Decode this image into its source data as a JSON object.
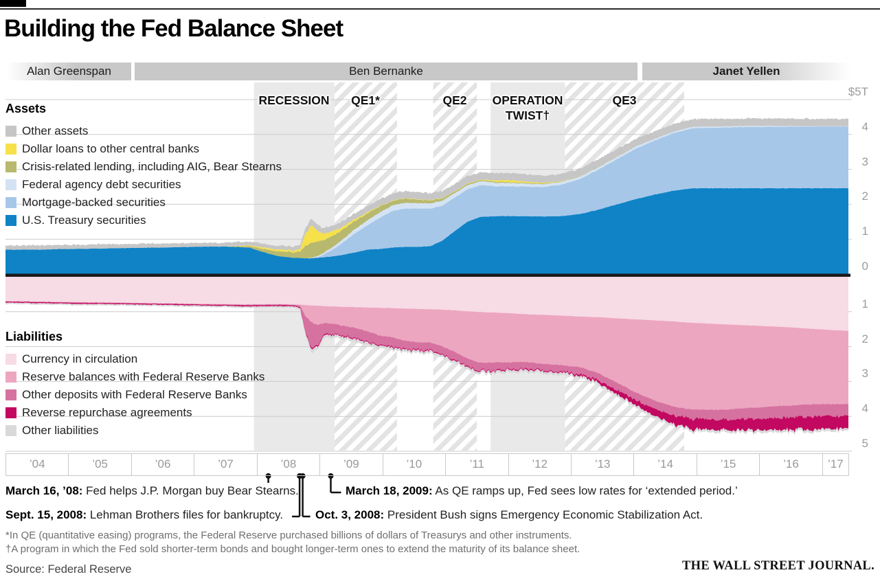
{
  "title": "Building the Fed Balance Sheet",
  "chairmen": [
    {
      "name": "Alan Greenspan"
    },
    {
      "name": "Ben Bernanke"
    },
    {
      "name": "Janet Yellen"
    }
  ],
  "legend_assets": {
    "title": "Assets",
    "items": [
      {
        "label": "Other assets",
        "color": "#c6c6c6"
      },
      {
        "label": "Dollar loans to other central banks",
        "color": "#f6e14b"
      },
      {
        "label": "Crisis-related lending, including AIG, Bear Stearns",
        "color": "#b8b96e"
      },
      {
        "label": "Federal agency debt securities",
        "color": "#d4e3f4"
      },
      {
        "label": "Mortgage-backed securities",
        "color": "#a7c7e8"
      },
      {
        "label": "U.S. Treasury securities",
        "color": "#0f83c6"
      }
    ]
  },
  "legend_liabilities": {
    "title": "Liabilities",
    "items": [
      {
        "label": "Currency in circulation",
        "color": "#f7dbe5"
      },
      {
        "label": "Reserve balances with Federal Reserve Banks",
        "color": "#eda6c0"
      },
      {
        "label": "Other deposits with Federal Reserve Banks",
        "color": "#d672a0"
      },
      {
        "label": "Reverse repurchase agreements",
        "color": "#c20860"
      },
      {
        "label": "Other liabilities",
        "color": "#d9d9d9"
      }
    ]
  },
  "axis": {
    "assets_labels": [
      "$5T",
      "4",
      "3",
      "2",
      "1",
      "0"
    ],
    "liabilities_labels": [
      "1",
      "2",
      "3",
      "4",
      "5"
    ],
    "years": [
      "’04",
      "’05",
      "’06",
      "’07",
      "’08",
      "’09",
      "’10",
      "’11",
      "’12",
      "’13",
      "’14",
      "’15",
      "’16",
      "’17"
    ]
  },
  "annotations": [
    {
      "bold": "March 16, ’08:",
      "text": " Fed helps J.P. Morgan buy Bear Stearns.",
      "marker_year": 2008.21
    },
    {
      "bold": "March 18, 2009:",
      "text": " As QE ramps up, Fed sees low rates for ‘extended period.’",
      "marker_year": 2009.21
    },
    {
      "bold": "Sept. 15, 2008:",
      "text": " Lehman Brothers files for bankruptcy.",
      "marker_year": 2008.71
    },
    {
      "bold": "Oct. 3, 2008:",
      "text": " President Bush signs Emergency Economic Stabilization Act.",
      "marker_year": 2008.76
    }
  ],
  "footnotes": [
    "*In QE (quantitative easing) programs, the Federal Reserve purchased billions of dollars of Treasurys and other instruments.",
    "†A program in which the Fed sold shorter-term bonds and bought longer-term ones to extend the maturity of its balance sheet."
  ],
  "source": "Source: Federal Reserve",
  "brand": "THE WALL STREET JOURNAL.",
  "colors": {
    "band_solid": "#e9e9e9",
    "hatch_stripe": "#e3e3e3",
    "grid": "#cbcbcb",
    "zero_line": "#1a1a1a",
    "connector": "#111111"
  },
  "chart_data": {
    "type": "area",
    "stacked": true,
    "x_range": [
      2004,
      2017.5
    ],
    "y_unit": "trillions of U.S. dollars",
    "assets_ylim": [
      0,
      5
    ],
    "liabilities_ylim": [
      0,
      5
    ],
    "legend_position": "left",
    "grid": true,
    "bands": [
      {
        "label": "RECESSION",
        "start": 2007.98,
        "end": 2009.27,
        "style": "solid"
      },
      {
        "label": "QE1*",
        "start": 2009.27,
        "end": 2010.27,
        "style": "hatch"
      },
      {
        "label": "QE2",
        "start": 2010.85,
        "end": 2011.55,
        "style": "hatch"
      },
      {
        "label": "OPERATION TWIST†",
        "start": 2011.77,
        "end": 2012.96,
        "style": "solid"
      },
      {
        "label": "QE3",
        "start": 2012.96,
        "end": 2014.87,
        "style": "hatch"
      }
    ],
    "assets": {
      "x": [
        2004,
        2004.5,
        2005,
        2005.5,
        2006,
        2006.5,
        2007,
        2007.5,
        2007.9,
        2008.15,
        2008.35,
        2008.6,
        2008.72,
        2008.8,
        2008.9,
        2009,
        2009.1,
        2009.25,
        2009.4,
        2009.6,
        2009.8,
        2010,
        2010.2,
        2010.4,
        2010.6,
        2010.8,
        2011,
        2011.2,
        2011.4,
        2011.6,
        2011.9,
        2012.1,
        2012.3,
        2012.6,
        2012.9,
        2013.2,
        2013.5,
        2013.8,
        2014.1,
        2014.4,
        2014.7,
        2015,
        2015.5,
        2016,
        2016.5,
        2017,
        2017.5
      ],
      "series": [
        {
          "name": "U.S. Treasury securities",
          "color": "#0f83c6",
          "values": [
            0.7,
            0.7,
            0.72,
            0.73,
            0.75,
            0.76,
            0.78,
            0.79,
            0.76,
            0.62,
            0.52,
            0.47,
            0.46,
            0.45,
            0.45,
            0.47,
            0.48,
            0.51,
            0.55,
            0.62,
            0.7,
            0.72,
            0.76,
            0.78,
            0.78,
            0.8,
            0.96,
            1.24,
            1.5,
            1.64,
            1.66,
            1.66,
            1.66,
            1.65,
            1.66,
            1.72,
            1.85,
            2.0,
            2.15,
            2.28,
            2.39,
            2.46,
            2.46,
            2.46,
            2.46,
            2.46,
            2.46
          ]
        },
        {
          "name": "Mortgage-backed securities",
          "color": "#a7c7e8",
          "values": [
            0,
            0,
            0,
            0,
            0,
            0,
            0,
            0,
            0,
            0,
            0,
            0,
            0,
            0,
            0,
            0.02,
            0.08,
            0.2,
            0.35,
            0.55,
            0.7,
            0.9,
            1.05,
            1.1,
            1.1,
            1.08,
            1.0,
            0.96,
            0.92,
            0.91,
            0.85,
            0.85,
            0.85,
            0.84,
            0.9,
            1.0,
            1.15,
            1.3,
            1.45,
            1.55,
            1.65,
            1.72,
            1.74,
            1.76,
            1.76,
            1.77,
            1.77
          ]
        },
        {
          "name": "Federal agency debt securities",
          "color": "#d4e3f4",
          "values": [
            0,
            0,
            0,
            0,
            0,
            0,
            0,
            0,
            0,
            0,
            0,
            0,
            0,
            0,
            0.01,
            0.03,
            0.05,
            0.07,
            0.09,
            0.12,
            0.14,
            0.15,
            0.16,
            0.16,
            0.15,
            0.15,
            0.14,
            0.13,
            0.12,
            0.11,
            0.1,
            0.1,
            0.09,
            0.08,
            0.08,
            0.07,
            0.07,
            0.06,
            0.06,
            0.05,
            0.04,
            0.04,
            0.03,
            0.03,
            0.02,
            0.01,
            0.01
          ]
        },
        {
          "name": "Crisis-related lending, including AIG, Bear Stearns",
          "color": "#b8b96e",
          "values": [
            0,
            0,
            0,
            0,
            0,
            0,
            0,
            0,
            0.04,
            0.1,
            0.14,
            0.16,
            0.19,
            0.35,
            0.43,
            0.42,
            0.36,
            0.32,
            0.28,
            0.24,
            0.2,
            0.18,
            0.13,
            0.12,
            0.1,
            0.09,
            0.06,
            0.04,
            0.04,
            0.03,
            0.03,
            0.02,
            0.02,
            0.02,
            0.01,
            0.01,
            0.01,
            0.01,
            0,
            0,
            0,
            0,
            0,
            0,
            0,
            0,
            0
          ]
        },
        {
          "name": "Dollar loans to other central banks",
          "color": "#f6e14b",
          "values": [
            0,
            0,
            0,
            0,
            0,
            0,
            0,
            0,
            0.02,
            0.04,
            0.05,
            0.05,
            0.07,
            0.35,
            0.49,
            0.3,
            0.18,
            0.12,
            0.08,
            0.05,
            0.03,
            0.01,
            0.01,
            0.01,
            0.01,
            0.01,
            0.01,
            0.01,
            0.01,
            0.01,
            0.04,
            0.06,
            0.04,
            0.02,
            0.01,
            0,
            0,
            0,
            0,
            0,
            0,
            0,
            0,
            0,
            0,
            0,
            0
          ]
        },
        {
          "name": "Other assets",
          "color": "#c6c6c6",
          "values": [
            0.12,
            0.12,
            0.12,
            0.12,
            0.12,
            0.12,
            0.11,
            0.11,
            0.11,
            0.11,
            0.11,
            0.11,
            0.12,
            0.16,
            0.19,
            0.17,
            0.16,
            0.16,
            0.16,
            0.17,
            0.18,
            0.19,
            0.2,
            0.2,
            0.2,
            0.2,
            0.2,
            0.21,
            0.21,
            0.21,
            0.21,
            0.21,
            0.21,
            0.21,
            0.21,
            0.22,
            0.22,
            0.22,
            0.22,
            0.22,
            0.22,
            0.22,
            0.22,
            0.21,
            0.21,
            0.21,
            0.2
          ]
        }
      ]
    },
    "liabilities": {
      "x": [
        2004,
        2005,
        2006,
        2007,
        2007.9,
        2008.35,
        2008.6,
        2008.72,
        2008.8,
        2008.9,
        2009,
        2009.1,
        2009.25,
        2009.4,
        2009.6,
        2009.8,
        2010,
        2010.2,
        2010.4,
        2010.6,
        2010.8,
        2011,
        2011.2,
        2011.4,
        2011.6,
        2011.9,
        2012.1,
        2012.3,
        2012.6,
        2012.9,
        2013.2,
        2013.5,
        2013.8,
        2014.1,
        2014.4,
        2014.7,
        2015,
        2015.5,
        2016,
        2016.5,
        2017,
        2017.5
      ],
      "series": [
        {
          "name": "Currency in circulation",
          "color": "#f7dbe5",
          "values": [
            0.69,
            0.72,
            0.74,
            0.77,
            0.79,
            0.78,
            0.79,
            0.8,
            0.81,
            0.82,
            0.83,
            0.84,
            0.85,
            0.86,
            0.87,
            0.88,
            0.89,
            0.9,
            0.91,
            0.92,
            0.93,
            0.94,
            0.96,
            0.99,
            1.01,
            1.03,
            1.05,
            1.07,
            1.09,
            1.11,
            1.14,
            1.16,
            1.19,
            1.22,
            1.25,
            1.28,
            1.32,
            1.36,
            1.4,
            1.44,
            1.5,
            1.55
          ]
        },
        {
          "name": "Reserve balances with Federal Reserve Banks",
          "color": "#eda6c0",
          "values": [
            0.01,
            0.01,
            0.01,
            0.01,
            0.01,
            0.01,
            0.01,
            0.03,
            0.3,
            0.48,
            0.55,
            0.48,
            0.5,
            0.54,
            0.6,
            0.68,
            0.8,
            0.84,
            0.92,
            0.95,
            0.95,
            1.05,
            1.2,
            1.35,
            1.45,
            1.42,
            1.4,
            1.36,
            1.4,
            1.42,
            1.45,
            1.6,
            1.85,
            2.1,
            2.3,
            2.45,
            2.48,
            2.45,
            2.35,
            2.25,
            2.15,
            2.1
          ]
        },
        {
          "name": "Other deposits with Federal Reserve Banks",
          "color": "#d672a0",
          "values": [
            0.01,
            0.01,
            0.01,
            0.01,
            0.02,
            0.02,
            0.02,
            0.04,
            0.45,
            0.72,
            0.6,
            0.32,
            0.28,
            0.3,
            0.3,
            0.28,
            0.26,
            0.26,
            0.24,
            0.22,
            0.22,
            0.24,
            0.22,
            0.22,
            0.22,
            0.22,
            0.2,
            0.2,
            0.18,
            0.18,
            0.2,
            0.22,
            0.22,
            0.22,
            0.24,
            0.24,
            0.28,
            0.28,
            0.32,
            0.34,
            0.36,
            0.34
          ]
        },
        {
          "name": "Reverse repurchase agreements",
          "color": "#c20860",
          "values": [
            0.03,
            0.03,
            0.03,
            0.03,
            0.03,
            0.03,
            0.03,
            0.03,
            0.04,
            0.04,
            0.04,
            0.04,
            0.03,
            0.03,
            0.03,
            0.03,
            0.03,
            0.03,
            0.03,
            0.03,
            0.03,
            0.03,
            0.03,
            0.03,
            0.03,
            0.03,
            0.03,
            0.03,
            0.03,
            0.03,
            0.05,
            0.08,
            0.12,
            0.16,
            0.2,
            0.25,
            0.3,
            0.3,
            0.33,
            0.35,
            0.38,
            0.36
          ]
        },
        {
          "name": "Other liabilities",
          "color": "#d9d9d9",
          "values": [
            0.04,
            0.04,
            0.04,
            0.04,
            0.04,
            0.04,
            0.04,
            0.05,
            0.08,
            0.1,
            0.09,
            0.08,
            0.08,
            0.08,
            0.08,
            0.08,
            0.08,
            0.07,
            0.07,
            0.07,
            0.07,
            0.07,
            0.07,
            0.07,
            0.07,
            0.07,
            0.07,
            0.07,
            0.07,
            0.07,
            0.07,
            0.07,
            0.07,
            0.07,
            0.07,
            0.07,
            0.07,
            0.07,
            0.07,
            0.07,
            0.07,
            0.07
          ]
        }
      ]
    }
  }
}
